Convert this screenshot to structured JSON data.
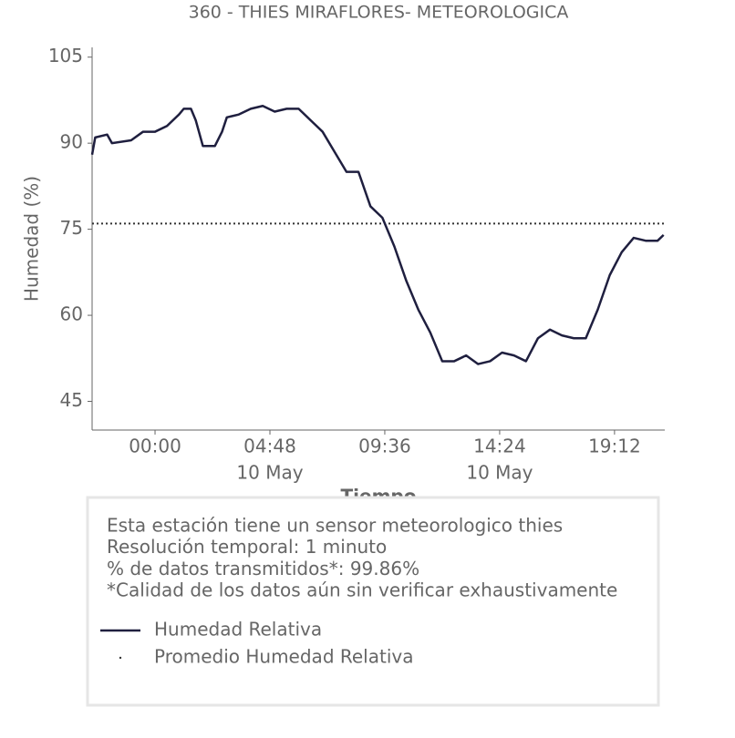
{
  "chart_data": {
    "type": "line",
    "title": "360 - THIES MIRAFLORES- METEOROLOGICA",
    "y_label": "Humedad (%)",
    "x_label": "Tiempo",
    "x": [
      -2.63,
      -2.5,
      -2.0,
      -1.8,
      -1.0,
      -0.5,
      0,
      0.5,
      1.0,
      1.2,
      1.5,
      1.7,
      2.0,
      2.5,
      2.8,
      3.0,
      3.5,
      4.0,
      4.5,
      5.0,
      5.5,
      6.0,
      6.5,
      7.0,
      7.5,
      8.0,
      8.5,
      9.0,
      9.5,
      10.0,
      10.5,
      11.0,
      11.5,
      12.0,
      12.5,
      13.0,
      13.5,
      14.0,
      14.5,
      15.0,
      15.5,
      16.0,
      16.5,
      17.0,
      17.5,
      18.0,
      18.5,
      19.0,
      19.5,
      20.0,
      20.5,
      21.0,
      21.25
    ],
    "series": [
      {
        "name": "Humedad Relativa",
        "color": "#1f1f3f",
        "values": [
          88,
          91,
          91.5,
          90,
          90.5,
          92,
          92,
          93,
          95,
          96,
          96,
          94,
          89.5,
          89.5,
          92,
          94.5,
          95,
          96,
          96.5,
          95.5,
          96,
          96,
          94,
          92,
          88.5,
          85,
          85,
          79,
          77,
          72,
          66,
          61,
          57,
          52,
          52,
          53,
          51.5,
          52,
          53.5,
          53,
          52,
          56,
          57.5,
          56.5,
          56,
          56,
          61,
          67,
          71,
          73.5,
          73,
          73,
          74
        ]
      }
    ],
    "reference_line": {
      "name": "Promedio Humedad Relativa",
      "value": 76,
      "color": "#333333",
      "style": "dotted"
    },
    "xlim": [
      -2.63,
      21.3
    ],
    "xticks": [
      {
        "value": 0,
        "label": "00:00"
      },
      {
        "value": 4.8,
        "label": "04:48",
        "date": "10 May"
      },
      {
        "value": 9.6,
        "label": "09:36"
      },
      {
        "value": 14.4,
        "label": "14:24",
        "date": "10 May"
      },
      {
        "value": 19.2,
        "label": "19:12"
      }
    ],
    "ylim": [
      40,
      106.7
    ],
    "yticks": [
      45,
      60,
      75,
      90,
      105
    ],
    "notes": [
      "Esta estación tiene un sensor meteorologico thies",
      "Resolución temporal: 1 minuto",
      "% de datos transmitidos*: 99.86%",
      "*Calidad de los datos aún sin verificar exhaustivamente"
    ]
  }
}
